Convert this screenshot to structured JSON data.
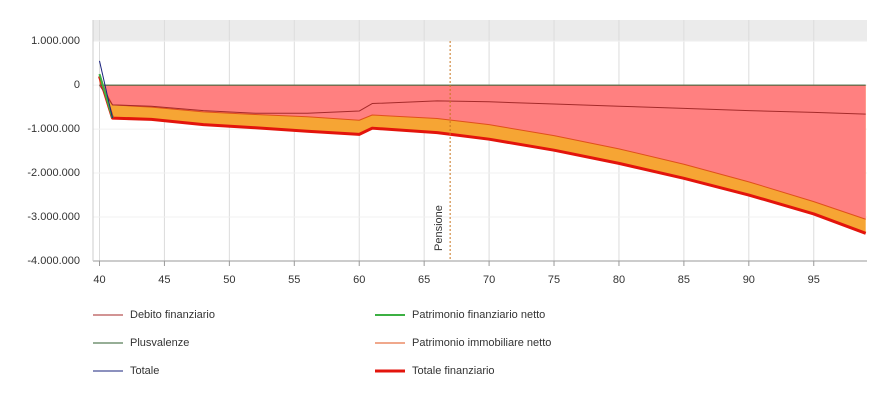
{
  "chart_data": {
    "type": "line",
    "x": [
      40,
      41,
      44,
      48,
      52,
      56,
      60,
      61,
      66,
      70,
      75,
      80,
      85,
      90,
      95,
      99
    ],
    "xlim": [
      39.5,
      99.1
    ],
    "xticks": [
      40,
      45,
      50,
      55,
      60,
      65,
      70,
      75,
      80,
      85,
      90,
      95
    ],
    "ylim": [
      -4000000,
      1480000
    ],
    "yticks": [
      {
        "value": 1000000,
        "label": "1.000.000"
      },
      0,
      {
        "value": -1000000,
        "label": "-1.000.000"
      },
      {
        "value": -2000000,
        "label": "-2.000.000"
      },
      {
        "value": -3000000,
        "label": "-3.000.000"
      },
      {
        "value": -4000000,
        "label": "-4.000.000"
      }
    ],
    "grid": true,
    "series": [
      {
        "name": "Totale finanziario",
        "color": "#e3140c",
        "fill": "#f6a534",
        "width": 3,
        "values": [
          200000,
          -750000,
          -780000,
          -900000,
          -970000,
          -1050000,
          -1120000,
          -980000,
          -1080000,
          -1230000,
          -1480000,
          -1780000,
          -2120000,
          -2500000,
          -2930000,
          -3370000
        ]
      },
      {
        "name": "Patrimonio immobiliare netto",
        "color": "#e0501a",
        "fill": "#ff8080",
        "width": 1,
        "values": [
          100000,
          -450000,
          -500000,
          -610000,
          -670000,
          -720000,
          -800000,
          -680000,
          -760000,
          -900000,
          -1150000,
          -1450000,
          -1800000,
          -2200000,
          -2650000,
          -3050000
        ]
      },
      {
        "name": "Debito finanziario",
        "color": "#a52a2a",
        "width": 1,
        "values": [
          0,
          -450000,
          -480000,
          -580000,
          -640000,
          -640000,
          -590000,
          -420000,
          -360000,
          -380000,
          -430000,
          -480000,
          -530000,
          -580000,
          -620000,
          -660000
        ]
      },
      {
        "name": "Plusvalenze",
        "color": "#2e5d2e",
        "width": 1,
        "values": [
          0,
          0,
          0,
          0,
          0,
          0,
          0,
          0,
          0,
          0,
          0,
          0,
          0,
          0,
          0,
          0
        ]
      },
      {
        "name": "Patrimonio finanziario netto",
        "color": "#3cb043",
        "width": 2,
        "values": [
          250000,
          -750000,
          null,
          null,
          null,
          null,
          null,
          null,
          null,
          null,
          null,
          null,
          null,
          null,
          null,
          null
        ]
      },
      {
        "name": "Totale",
        "color": "#1a237e",
        "width": 1,
        "values": [
          550000,
          -750000,
          null,
          null,
          null,
          null,
          null,
          null,
          null,
          null,
          null,
          null,
          null,
          null,
          null,
          null
        ]
      }
    ],
    "legend_order": [
      2,
      4,
      3,
      1,
      5,
      0
    ],
    "annotation": {
      "x": 67,
      "label": "Pensione",
      "color": "#c8741e"
    }
  }
}
